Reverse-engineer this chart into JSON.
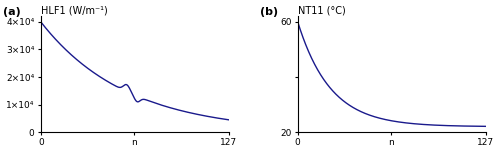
{
  "fig_width": 5.0,
  "fig_height": 1.53,
  "dpi": 100,
  "background_color": "#ffffff",
  "line_color": "#1a1a8c",
  "line_width": 1.0,
  "subplot_a": {
    "label": "(a)",
    "title": "HLF1 (W/m⁻¹)",
    "xlabel": "n",
    "xlim": [
      0,
      127
    ],
    "ylim": [
      0,
      42000
    ],
    "yticks": [
      0,
      10000,
      20000,
      30000,
      40000
    ],
    "ytick_labels": [
      "0",
      "1×10⁴",
      "2×10⁴",
      "3×10⁴",
      "4×10⁴"
    ],
    "xticks": [
      0,
      63,
      127
    ],
    "xtick_labels": [
      "0",
      "n",
      "127"
    ]
  },
  "subplot_b": {
    "label": "(b)",
    "title": "NT11 (°C)",
    "xlabel": "n",
    "xlim": [
      0,
      127
    ],
    "ylim": [
      20,
      62
    ],
    "yticks": [
      20,
      40,
      60
    ],
    "ytick_labels": [
      "20",
      "",
      "60"
    ],
    "xticks": [
      0,
      63,
      127
    ],
    "xtick_labels": [
      "0",
      "n",
      "127"
    ]
  }
}
